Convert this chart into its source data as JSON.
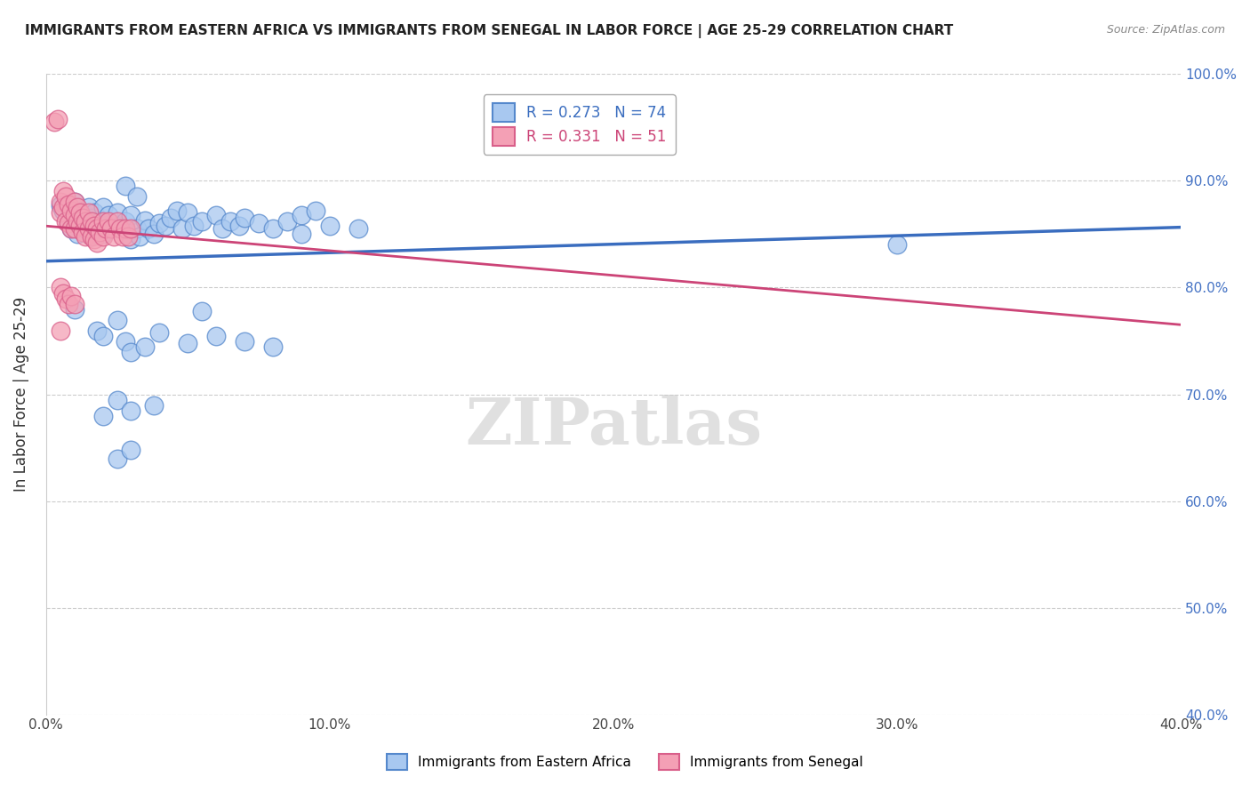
{
  "title": "IMMIGRANTS FROM EASTERN AFRICA VS IMMIGRANTS FROM SENEGAL IN LABOR FORCE | AGE 25-29 CORRELATION CHART",
  "source": "Source: ZipAtlas.com",
  "ylabel": "In Labor Force | Age 25-29",
  "xlim": [
    0.0,
    0.4
  ],
  "ylim": [
    0.4,
    1.0
  ],
  "blue_R": 0.273,
  "blue_N": 74,
  "pink_R": 0.331,
  "pink_N": 51,
  "blue_color": "#A8C8F0",
  "pink_color": "#F4A0B5",
  "blue_edge_color": "#5588CC",
  "pink_edge_color": "#D95F8A",
  "blue_line_color": "#3A6DBF",
  "pink_line_color": "#CC4477",
  "right_tick_color": "#4472C4",
  "legend_blue_label": "Immigrants from Eastern Africa",
  "legend_pink_label": "Immigrants from Senegal",
  "watermark": "ZIPatlas",
  "blue_points": [
    [
      0.005,
      0.877
    ],
    [
      0.006,
      0.872
    ],
    [
      0.008,
      0.86
    ],
    [
      0.009,
      0.855
    ],
    [
      0.01,
      0.88
    ],
    [
      0.01,
      0.865
    ],
    [
      0.011,
      0.85
    ],
    [
      0.012,
      0.87
    ],
    [
      0.013,
      0.86
    ],
    [
      0.014,
      0.855
    ],
    [
      0.015,
      0.875
    ],
    [
      0.015,
      0.858
    ],
    [
      0.016,
      0.865
    ],
    [
      0.016,
      0.848
    ],
    [
      0.017,
      0.87
    ],
    [
      0.018,
      0.855
    ],
    [
      0.019,
      0.862
    ],
    [
      0.02,
      0.875
    ],
    [
      0.02,
      0.85
    ],
    [
      0.022,
      0.868
    ],
    [
      0.023,
      0.855
    ],
    [
      0.025,
      0.87
    ],
    [
      0.026,
      0.858
    ],
    [
      0.028,
      0.862
    ],
    [
      0.03,
      0.868
    ],
    [
      0.03,
      0.845
    ],
    [
      0.032,
      0.855
    ],
    [
      0.033,
      0.848
    ],
    [
      0.035,
      0.863
    ],
    [
      0.036,
      0.855
    ],
    [
      0.038,
      0.85
    ],
    [
      0.04,
      0.86
    ],
    [
      0.042,
      0.858
    ],
    [
      0.044,
      0.865
    ],
    [
      0.046,
      0.872
    ],
    [
      0.048,
      0.855
    ],
    [
      0.05,
      0.87
    ],
    [
      0.052,
      0.858
    ],
    [
      0.055,
      0.862
    ],
    [
      0.06,
      0.868
    ],
    [
      0.062,
      0.855
    ],
    [
      0.065,
      0.862
    ],
    [
      0.068,
      0.858
    ],
    [
      0.07,
      0.865
    ],
    [
      0.075,
      0.86
    ],
    [
      0.08,
      0.855
    ],
    [
      0.085,
      0.862
    ],
    [
      0.09,
      0.868
    ],
    [
      0.095,
      0.872
    ],
    [
      0.1,
      0.858
    ],
    [
      0.01,
      0.78
    ],
    [
      0.018,
      0.76
    ],
    [
      0.02,
      0.755
    ],
    [
      0.025,
      0.77
    ],
    [
      0.028,
      0.75
    ],
    [
      0.03,
      0.74
    ],
    [
      0.035,
      0.745
    ],
    [
      0.04,
      0.758
    ],
    [
      0.05,
      0.748
    ],
    [
      0.06,
      0.755
    ],
    [
      0.07,
      0.75
    ],
    [
      0.08,
      0.745
    ],
    [
      0.09,
      0.85
    ],
    [
      0.02,
      0.68
    ],
    [
      0.025,
      0.695
    ],
    [
      0.03,
      0.685
    ],
    [
      0.038,
      0.69
    ],
    [
      0.055,
      0.778
    ],
    [
      0.025,
      0.64
    ],
    [
      0.03,
      0.648
    ],
    [
      0.028,
      0.895
    ],
    [
      0.032,
      0.885
    ],
    [
      0.11,
      0.855
    ],
    [
      0.3,
      0.84
    ]
  ],
  "pink_points": [
    [
      0.003,
      0.955
    ],
    [
      0.004,
      0.958
    ],
    [
      0.005,
      0.88
    ],
    [
      0.005,
      0.87
    ],
    [
      0.006,
      0.89
    ],
    [
      0.006,
      0.875
    ],
    [
      0.007,
      0.885
    ],
    [
      0.007,
      0.862
    ],
    [
      0.008,
      0.878
    ],
    [
      0.008,
      0.86
    ],
    [
      0.009,
      0.872
    ],
    [
      0.009,
      0.855
    ],
    [
      0.01,
      0.88
    ],
    [
      0.01,
      0.868
    ],
    [
      0.01,
      0.855
    ],
    [
      0.011,
      0.875
    ],
    [
      0.011,
      0.862
    ],
    [
      0.012,
      0.87
    ],
    [
      0.012,
      0.858
    ],
    [
      0.013,
      0.865
    ],
    [
      0.013,
      0.852
    ],
    [
      0.014,
      0.862
    ],
    [
      0.014,
      0.848
    ],
    [
      0.015,
      0.87
    ],
    [
      0.015,
      0.855
    ],
    [
      0.016,
      0.862
    ],
    [
      0.016,
      0.848
    ],
    [
      0.017,
      0.858
    ],
    [
      0.017,
      0.845
    ],
    [
      0.018,
      0.855
    ],
    [
      0.018,
      0.842
    ],
    [
      0.019,
      0.852
    ],
    [
      0.02,
      0.862
    ],
    [
      0.02,
      0.848
    ],
    [
      0.021,
      0.855
    ],
    [
      0.022,
      0.862
    ],
    [
      0.023,
      0.855
    ],
    [
      0.024,
      0.848
    ],
    [
      0.025,
      0.862
    ],
    [
      0.026,
      0.855
    ],
    [
      0.027,
      0.848
    ],
    [
      0.028,
      0.855
    ],
    [
      0.029,
      0.848
    ],
    [
      0.03,
      0.855
    ],
    [
      0.005,
      0.8
    ],
    [
      0.006,
      0.795
    ],
    [
      0.007,
      0.79
    ],
    [
      0.008,
      0.785
    ],
    [
      0.009,
      0.792
    ],
    [
      0.01,
      0.785
    ],
    [
      0.005,
      0.76
    ]
  ],
  "x_ticks": [
    0.0,
    0.1,
    0.2,
    0.3,
    0.4
  ],
  "y_ticks": [
    0.4,
    0.5,
    0.6,
    0.7,
    0.8,
    0.9,
    1.0
  ]
}
